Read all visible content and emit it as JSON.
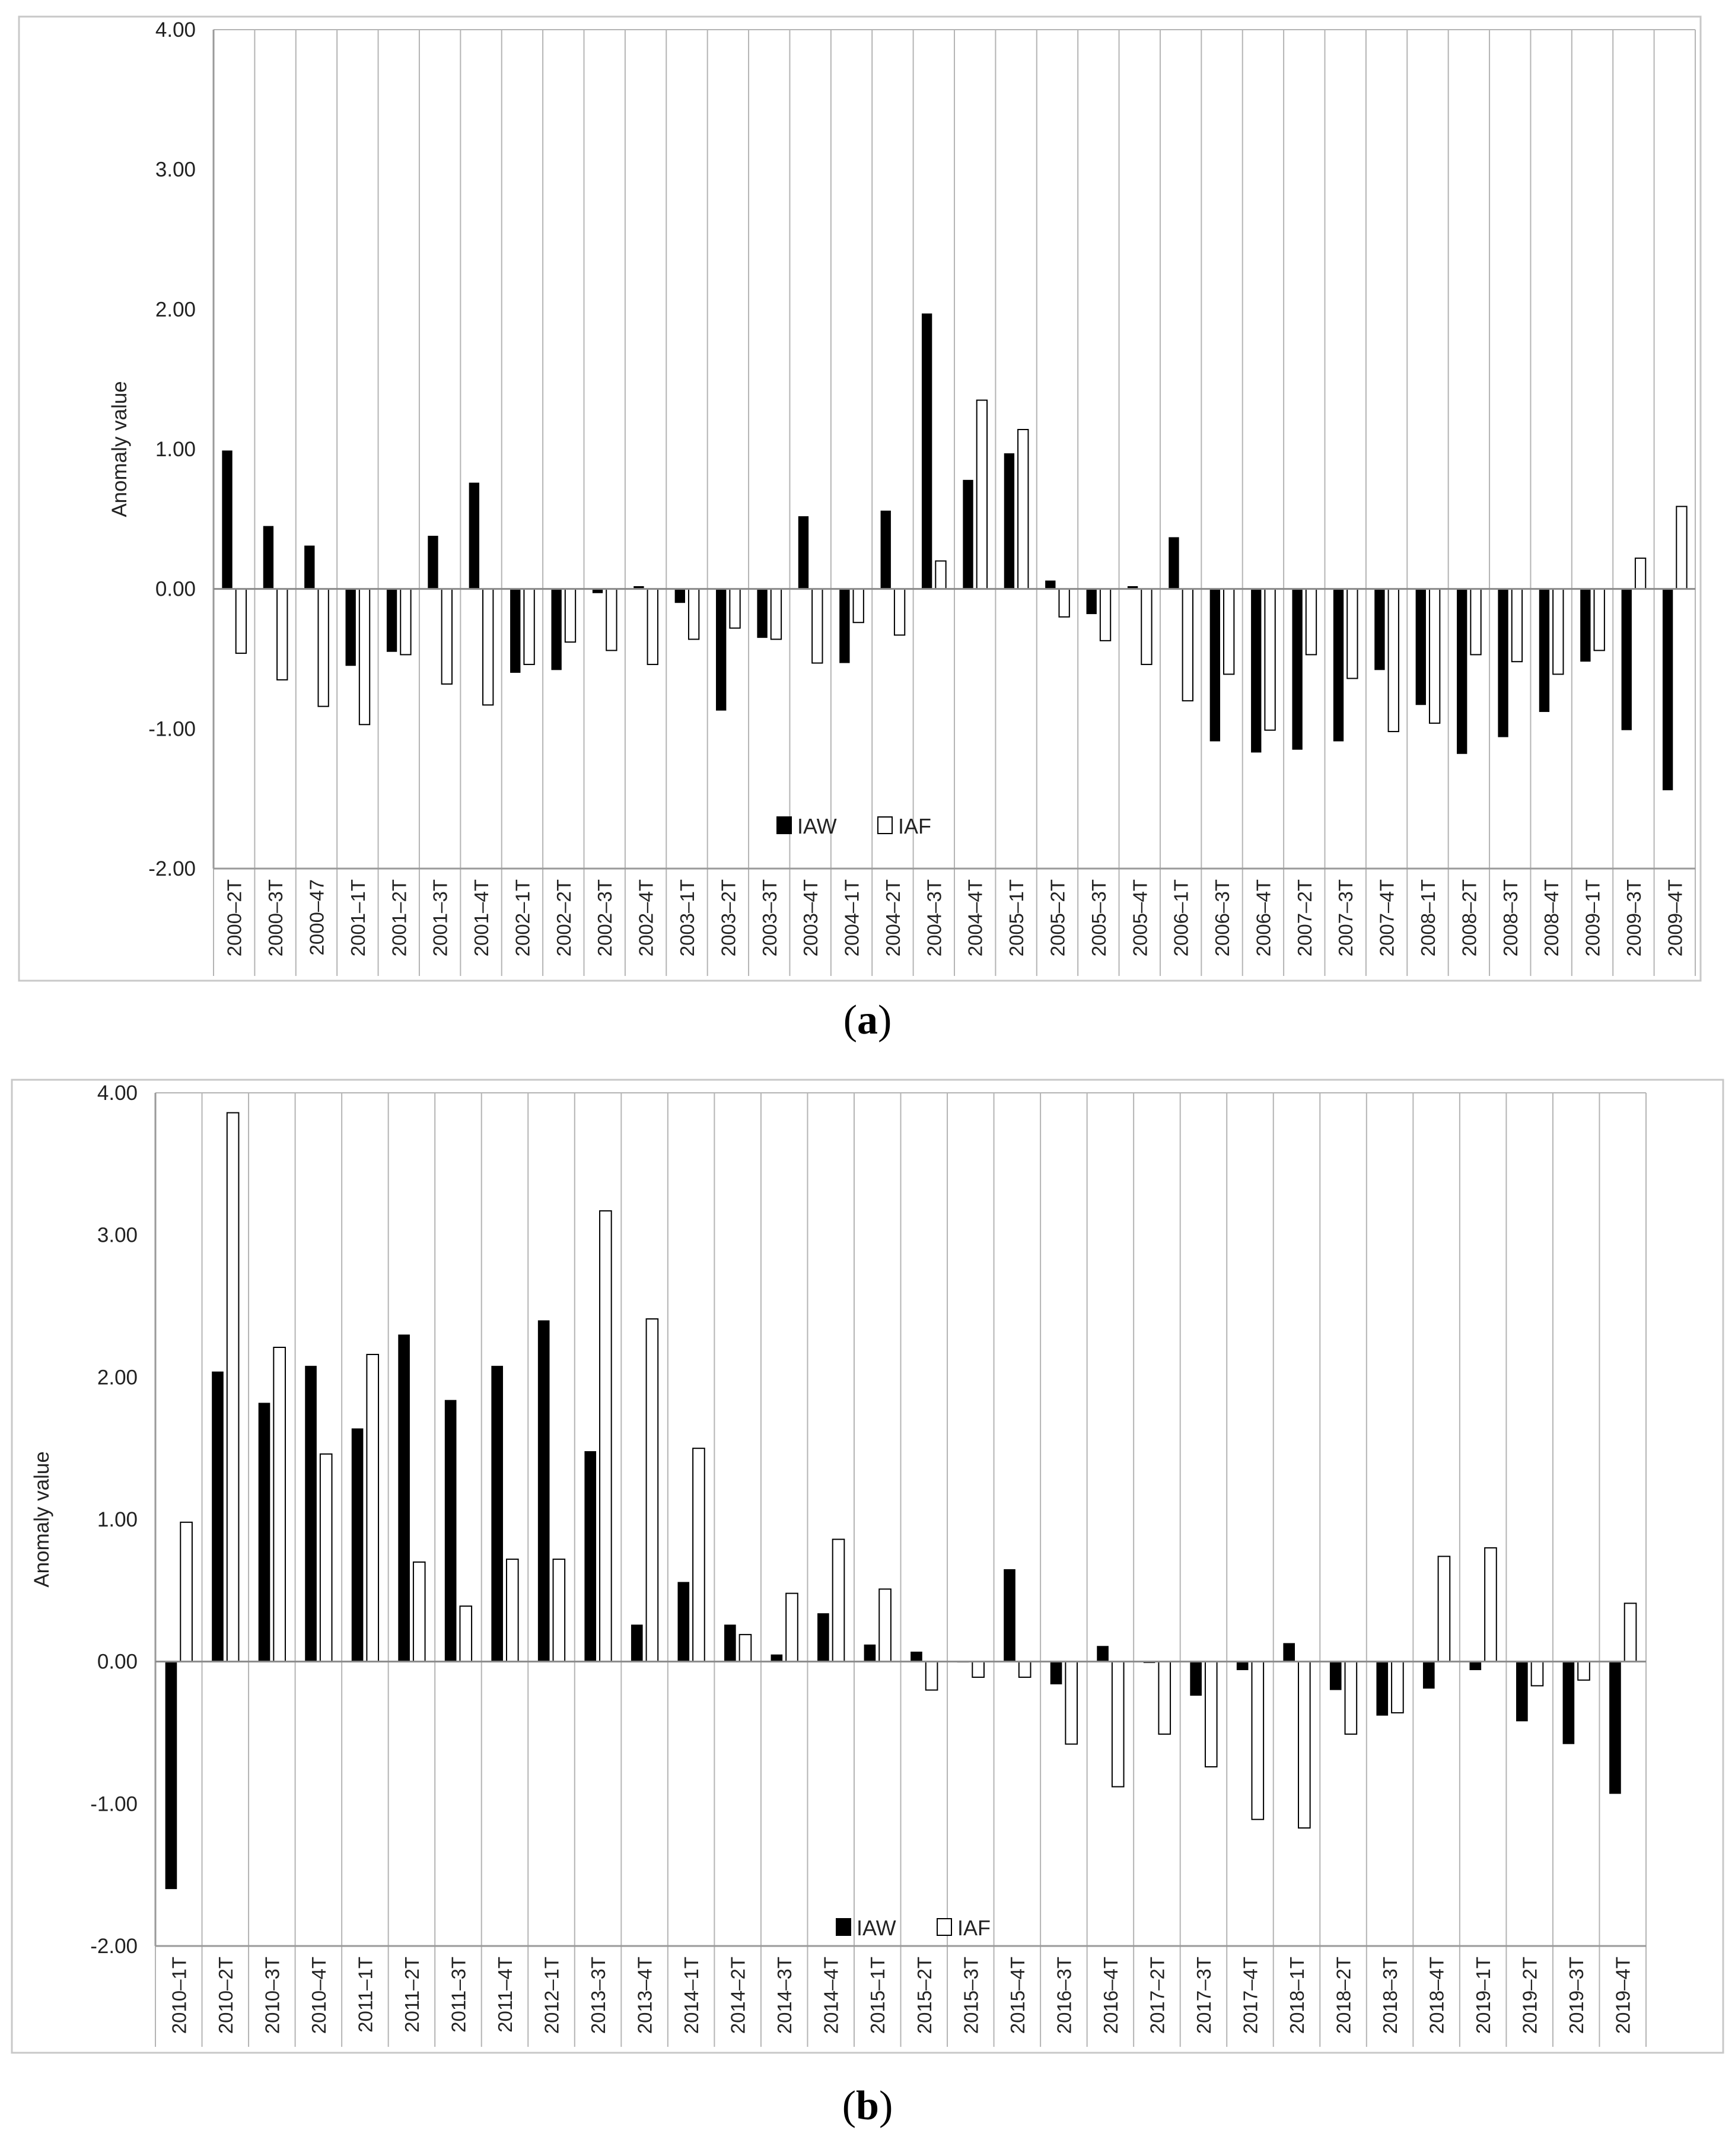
{
  "panels": [
    {
      "caption": "a",
      "chart_data": {
        "type": "bar",
        "title": "",
        "xlabel": "",
        "ylabel": "Anomaly value",
        "ylim": [
          -2,
          4
        ],
        "yticks": [
          "4.00",
          "3.00",
          "2.00",
          "1.00",
          "0.00",
          "-1.00",
          "-2.00"
        ],
        "grid": "vertical",
        "legend": "bottom-center",
        "categories": [
          "2000–2T",
          "2000–3T",
          "2000–47",
          "2001–1T",
          "2001–2T",
          "2001–3T",
          "2001–4T",
          "2002–1T",
          "2002–2T",
          "2002–3T",
          "2002–4T",
          "2003–1T",
          "2003–2T",
          "2003–3T",
          "2003–4T",
          "2004–1T",
          "2004–2T",
          "2004–3T",
          "2004–4T",
          "2005–1T",
          "2005–2T",
          "2005–3T",
          "2005–4T",
          "2006–1T",
          "2006–3T",
          "2006–4T",
          "2007–2T",
          "2007–3T",
          "2007–4T",
          "2008–1T",
          "2008–2T",
          "2008–3T",
          "2008–4T",
          "2009–1T",
          "2009–3T",
          "2009–4T"
        ],
        "series": [
          {
            "name": "IAW",
            "color": "#000000",
            "values": [
              0.99,
              0.45,
              0.31,
              -0.55,
              -0.45,
              0.38,
              0.76,
              -0.6,
              -0.58,
              -0.03,
              0.02,
              -0.1,
              -0.87,
              -0.35,
              0.52,
              -0.53,
              0.56,
              1.97,
              0.78,
              0.97,
              0.06,
              -0.18,
              0.02,
              0.37,
              -1.09,
              -1.17,
              -1.15,
              -1.09,
              -0.58,
              -0.83,
              -1.18,
              -1.06,
              -0.88,
              -0.52,
              -1.01,
              -1.44
            ]
          },
          {
            "name": "IAF",
            "color": "#ffffff",
            "values": [
              -0.46,
              -0.65,
              -0.84,
              -0.97,
              -0.47,
              -0.68,
              -0.83,
              -0.54,
              -0.38,
              -0.44,
              -0.54,
              -0.36,
              -0.28,
              -0.36,
              -0.53,
              -0.24,
              -0.33,
              0.2,
              1.35,
              1.14,
              -0.2,
              -0.37,
              -0.54,
              -0.8,
              -0.61,
              -1.01,
              -0.47,
              -0.64,
              -1.02,
              -0.96,
              -0.47,
              -0.52,
              -0.61,
              -0.44,
              0.22,
              0.59
            ]
          }
        ]
      }
    },
    {
      "caption": "b",
      "chart_data": {
        "type": "bar",
        "title": "",
        "xlabel": "",
        "ylabel": "Anomaly value",
        "ylim": [
          -2,
          4
        ],
        "yticks": [
          "4.00",
          "3.00",
          "2.00",
          "1.00",
          "0.00",
          "-1.00",
          "-2.00"
        ],
        "grid": "vertical",
        "legend": "bottom-center",
        "categories": [
          "2010–1T",
          "2010–2T",
          "2010–3T",
          "2010–4T",
          "2011–1T",
          "2011–2T",
          "2011–3T",
          "2011–4T",
          "2012–1T",
          "2013–3T",
          "2013–4T",
          "2014–1T",
          "2014–2T",
          "2014–3T",
          "2014–4T",
          "2015–1T",
          "2015–2T",
          "2015–3T",
          "2015–4T",
          "2016–3T",
          "2016–4T",
          "2017–2T",
          "2017–3T",
          "2017–4T",
          "2018–1T",
          "2018–2T",
          "2018–3T",
          "2018–4T",
          "2019–1T",
          "2019–2T",
          "2019–3T",
          "2019–4T"
        ],
        "series": [
          {
            "name": "IAW",
            "color": "#000000",
            "values": [
              -1.6,
              2.04,
              1.82,
              2.08,
              1.64,
              2.3,
              1.84,
              2.08,
              2.4,
              1.48,
              0.26,
              0.56,
              0.26,
              0.05,
              0.34,
              0.12,
              0.07,
              0.0,
              0.65,
              -0.16,
              0.11,
              -0.01,
              -0.24,
              -0.06,
              0.13,
              -0.2,
              -0.38,
              -0.19,
              -0.06,
              -0.42,
              -0.58,
              -0.93
            ]
          },
          {
            "name": "IAF",
            "color": "#ffffff",
            "values": [
              0.98,
              3.86,
              2.21,
              1.46,
              2.16,
              0.7,
              0.39,
              0.72,
              0.72,
              3.17,
              2.41,
              1.5,
              0.19,
              0.48,
              0.86,
              0.51,
              -0.2,
              -0.11,
              -0.11,
              -0.58,
              -0.88,
              -0.51,
              -0.74,
              -1.11,
              -1.17,
              -0.51,
              -0.36,
              0.74,
              0.8,
              -0.17,
              -0.13,
              0.41
            ]
          }
        ]
      }
    }
  ]
}
